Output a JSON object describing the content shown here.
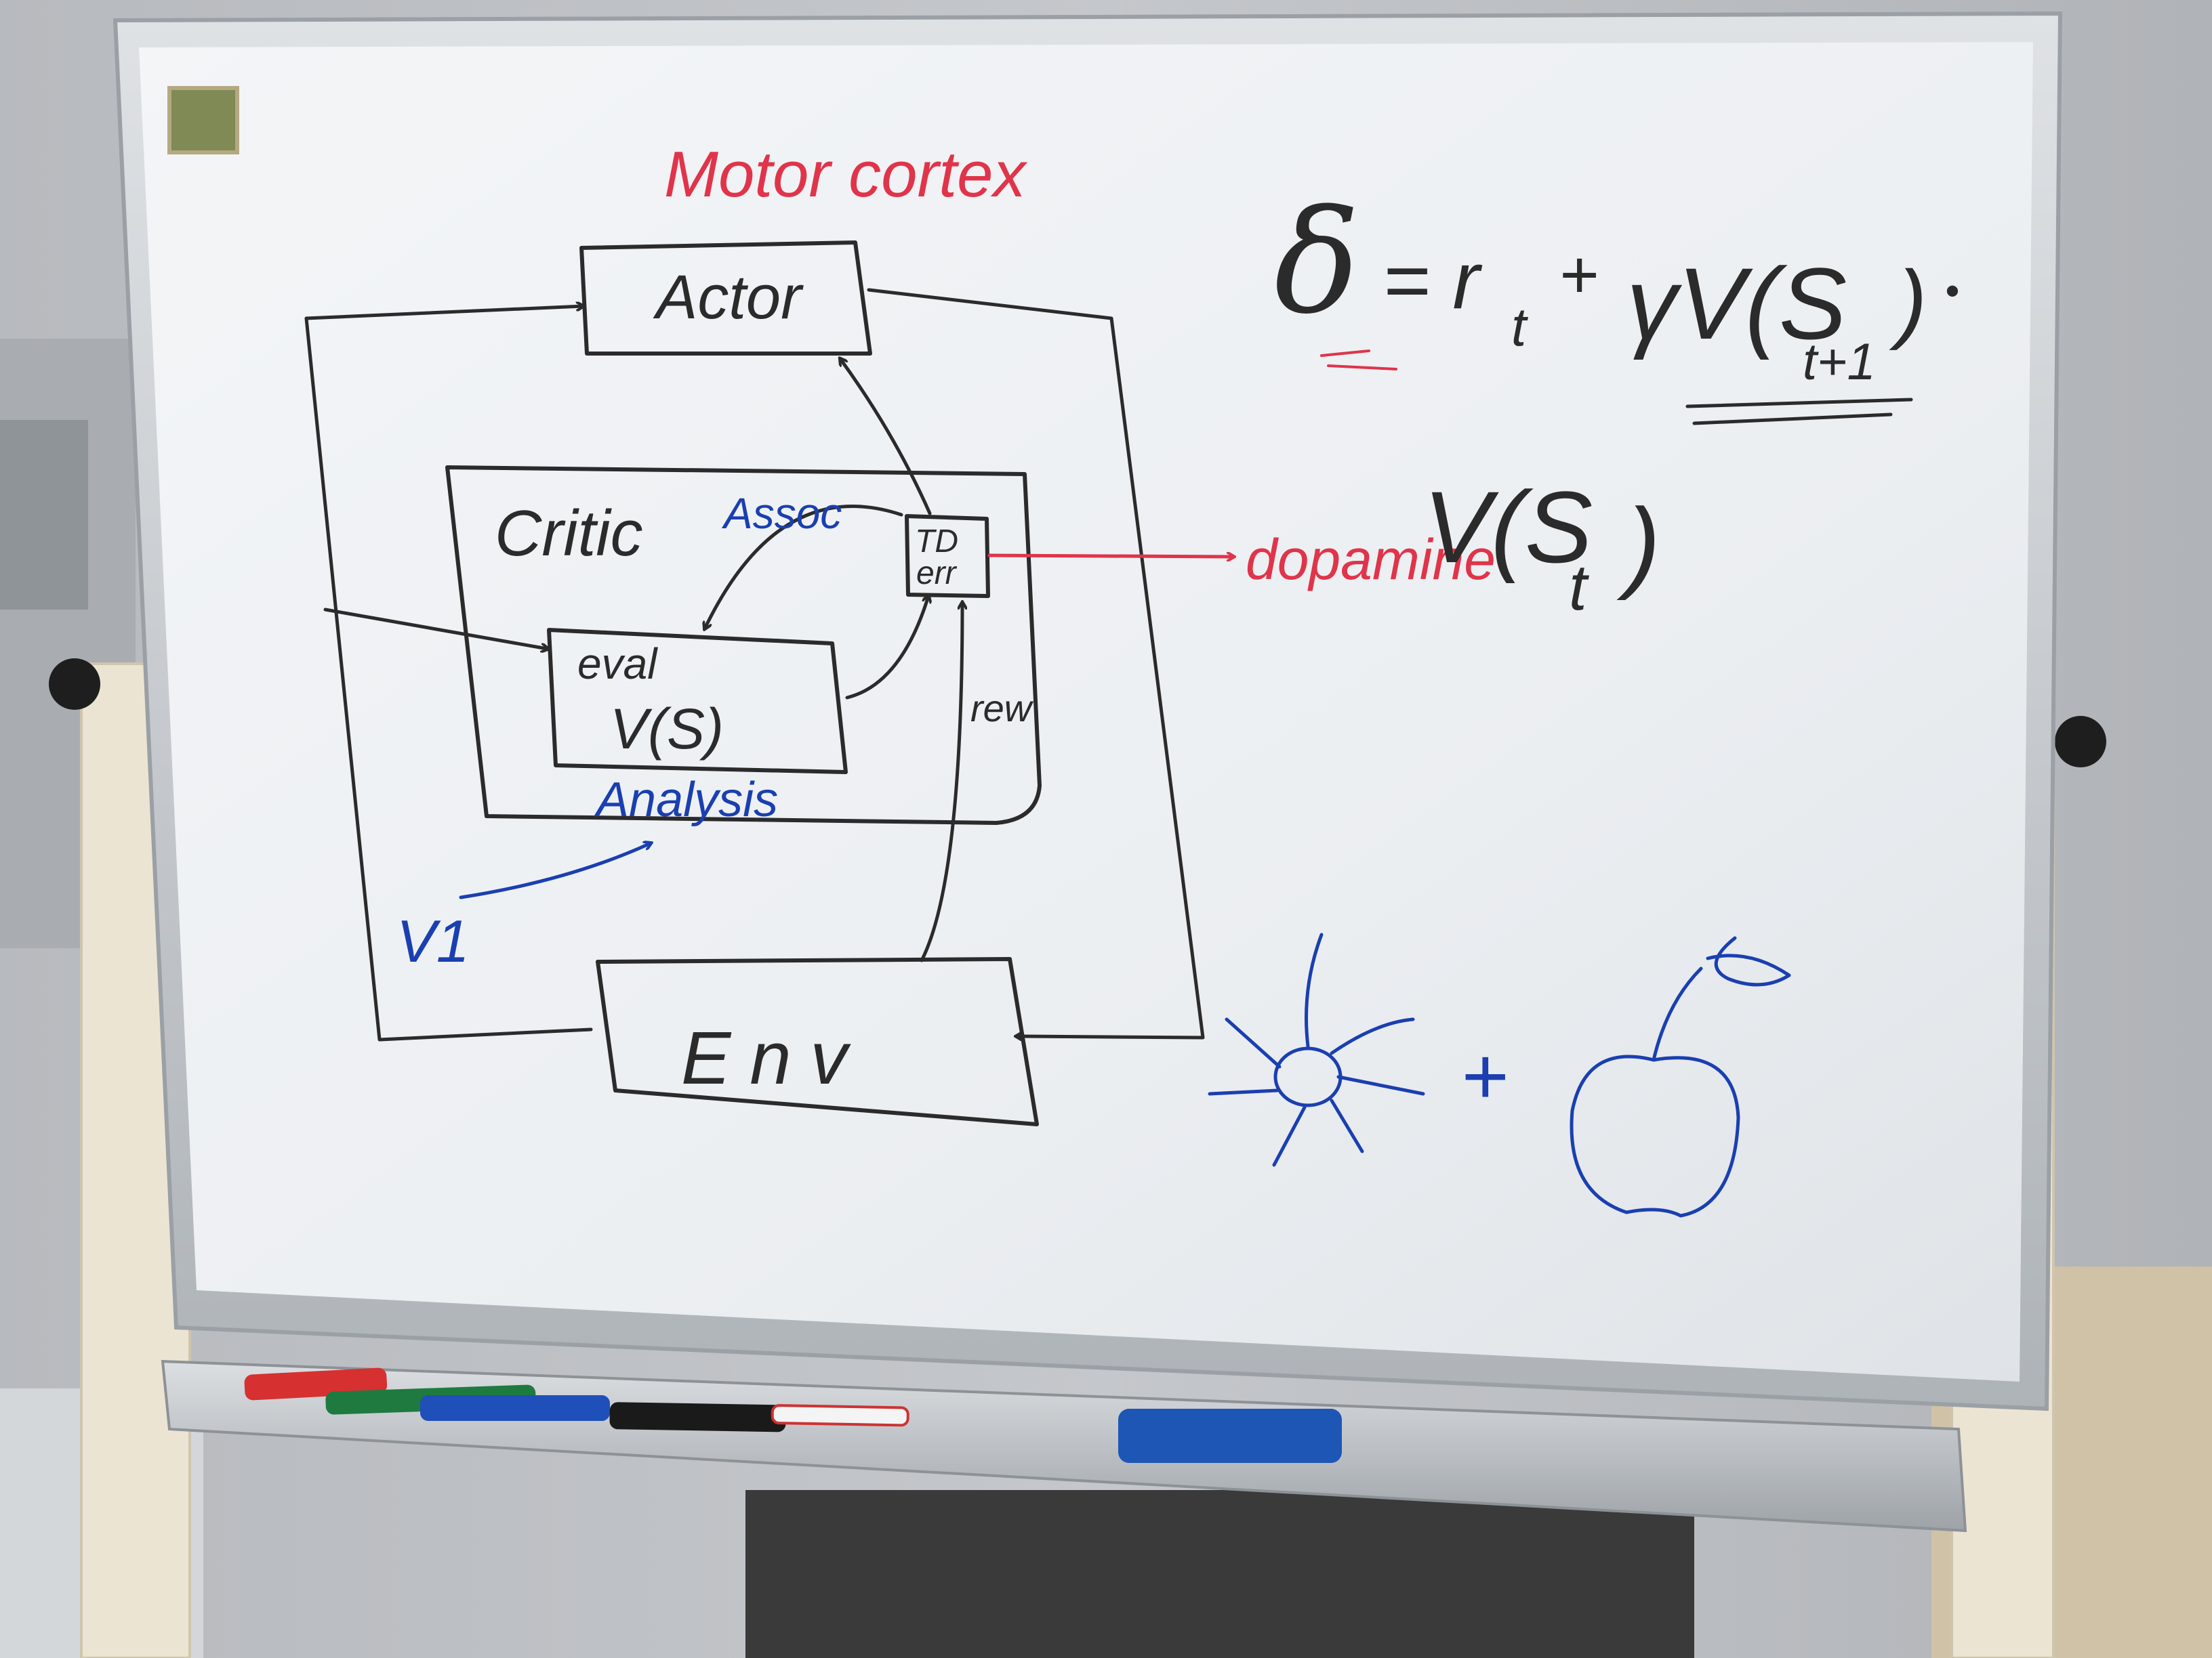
{
  "board": {
    "sticker_text": "",
    "header_red": "Motor cortex",
    "actor_label": "Actor",
    "critic_label": "Critic",
    "assoc_label": "Assoc",
    "td_line1": "TD",
    "td_line2": "err",
    "eval_line1": "eval",
    "eval_line2": "V(S)",
    "analysis_label": "Analysis",
    "v1_label": "V1",
    "rew_label": "rew",
    "env_label": "Env",
    "dopamine_label": "dopamine",
    "formula_delta": "δ",
    "formula_rhs": "= r",
    "formula_sub_t": "t",
    "formula_plus": "+",
    "formula_gamma": "γV(S",
    "formula_sub_t1": "t+1",
    "formula_close": ")",
    "formula_dot": "•",
    "vst_main": "V(S",
    "vst_sub": "t",
    "vst_close": ")",
    "plus_sign": "+"
  },
  "colors": {
    "black_ink": "#2b2b2b",
    "red_ink": "#e0344a",
    "blue_ink": "#1a3fb0",
    "board_white": "#eef1f4",
    "frame_silver": "#c9ced3",
    "stand_cream": "#ece4d2"
  },
  "icons": {
    "sun": "sun-drawing-icon",
    "apple": "apple-drawing-icon"
  }
}
